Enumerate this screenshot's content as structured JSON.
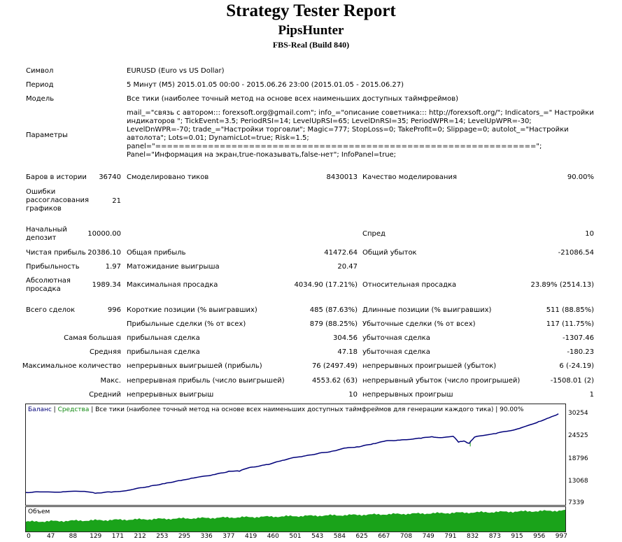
{
  "header": {
    "title": "Strategy Tester Report",
    "expert": "PipsHunter",
    "server": "FBS-Real (Build 840)"
  },
  "settings": {
    "symbol_label": "Символ",
    "symbol_value": "EURUSD (Euro vs US Dollar)",
    "period_label": "Период",
    "period_value": "5 Минут (M5) 2015.01.05 00:00 - 2015.06.26 23:00 (2015.01.05 - 2015.06.27)",
    "model_label": "Модель",
    "model_value": "Все тики (наиболее точный метод на основе всех наименьших доступных таймфреймов)",
    "params_label": "Параметры",
    "params_value": "mail_=\"связь с автором::: forexsoft.org@gmail.com\"; info_=\"описание советника::: http://forexsoft.org/\"; Indicators_=\" Настройки индикаторов \"; TickEvent=3.5; PeriodRSI=14; LevelUpRSI=65; LevelDnRSI=35; PeriodWPR=14; LevelUpWPR=-30; LevelDnWPR=-70; trade_=\"Настройки торговли\"; Magic=777; StopLoss=0; TakeProfit=0; Slippage=0; autolot_=\"Настройки автолота\"; Lots=0.01; DynamicLot=true; Risk=1.5;\npanel=\"=================================================================\"; Panel=\"Информация на экран,true-показывать,false-нет\"; InfoPanel=true;"
  },
  "stats": {
    "bars_label": "Баров в истории",
    "bars_value": "36740",
    "ticks_label": "Смоделировано тиков",
    "ticks_value": "8430013",
    "quality_label": "Качество моделирования",
    "quality_value": "90.00%",
    "mismatch_label": "Ошибки рассогласования графиков",
    "mismatch_value": "21",
    "deposit_label": "Начальный депозит",
    "deposit_value": "10000.00",
    "spread_label": "Спред",
    "spread_value": "10",
    "net_profit_label": "Чистая прибыль",
    "net_profit_value": "20386.10",
    "gross_profit_label": "Общая прибыль",
    "gross_profit_value": "41472.64",
    "gross_loss_label": "Общий убыток",
    "gross_loss_value": "-21086.54",
    "profit_factor_label": "Прибыльность",
    "profit_factor_value": "1.97",
    "expected_payoff_label": "Матожидание выигрыша",
    "expected_payoff_value": "20.47",
    "abs_dd_label": "Абсолютная просадка",
    "abs_dd_value": "1989.34",
    "max_dd_label": "Максимальная просадка",
    "max_dd_value": "4034.90 (17.21%)",
    "rel_dd_label": "Относительная просадка",
    "rel_dd_value": "23.89% (2514.13)",
    "total_trades_label": "Всего сделок",
    "total_trades_value": "996",
    "short_label": "Короткие позиции (% выигравших)",
    "short_value": "485 (87.63%)",
    "long_label": "Длинные позиции (% выигравших)",
    "long_value": "511 (88.85%)",
    "profit_trades_label": "Прибыльные сделки (% от всех)",
    "profit_trades_value": "879 (88.25%)",
    "loss_trades_label": "Убыточные сделки (% от всех)",
    "loss_trades_value": "117 (11.75%)",
    "largest_label": "Самая большая",
    "largest_profit_label": "прибыльная сделка",
    "largest_profit_value": "304.56",
    "largest_loss_label": "убыточная сделка",
    "largest_loss_value": "-1307.46",
    "average_label": "Средняя",
    "avg_profit_label": "прибыльная сделка",
    "avg_profit_value": "47.18",
    "avg_loss_label": "убыточная сделка",
    "avg_loss_value": "-180.23",
    "max_count_label": "Максимальное количество",
    "max_cons_wins_label": "непрерывных выигрышей (прибыль)",
    "max_cons_wins_value": "76 (2497.49)",
    "max_cons_losses_label": "непрерывных проигрышей (убыток)",
    "max_cons_losses_value": "6 (-24.19)",
    "max_label": "Макс.",
    "max_cons_profit_label": "непрерывная прибыль (число выигрышей)",
    "max_cons_profit_value": "4553.62 (63)",
    "max_cons_loss_label": "непрерывный убыток (число проигрышей)",
    "max_cons_loss_value": "-1508.01 (2)",
    "avg2_label": "Средний",
    "avg_cons_wins_label": "непрерывных выигрыш",
    "avg_cons_wins_value": "10",
    "avg_cons_losses_label": "непрерывных проигрыш",
    "avg_cons_losses_value": "1"
  },
  "chart_data": {
    "type": "line",
    "legend_balance": "Баланс",
    "legend_sep1": " | ",
    "legend_equity": "Средства",
    "legend_rest": " | Все тики (наиболее точный метод на основе всех наименьших доступных таймфреймов для генерации каждого тика) | 90.00%",
    "y_ticks": [
      "30254",
      "24525",
      "18796",
      "13068",
      "7339"
    ],
    "x_ticks": [
      "0",
      "47",
      "88",
      "129",
      "171",
      "212",
      "253",
      "295",
      "336",
      "377",
      "419",
      "460",
      "501",
      "543",
      "584",
      "625",
      "667",
      "708",
      "749",
      "791",
      "832",
      "873",
      "915",
      "956",
      "997"
    ],
    "xlim": [
      0,
      1010
    ],
    "ylim": [
      7339,
      30254
    ],
    "volume_label": "Объем",
    "colors": {
      "balance": "#00007a",
      "equity": "#1a9a1a",
      "volume": "#1aa31a"
    },
    "series": [
      {
        "x": [
          0,
          30,
          70,
          110,
          130,
          160,
          200,
          230,
          260,
          290,
          310,
          350,
          380,
          400,
          420,
          450,
          480,
          500,
          520,
          550,
          580,
          600,
          620,
          650,
          670,
          700,
          720,
          740,
          760,
          780,
          800,
          810,
          820,
          830,
          840,
          860,
          880,
          900,
          920,
          940,
          960,
          980,
          997
        ],
        "y": [
          10000,
          10150,
          10200,
          10300,
          9800,
          10100,
          10800,
          11500,
          12300,
          13100,
          13700,
          14600,
          15500,
          15500,
          16500,
          17200,
          18300,
          19000,
          19400,
          20200,
          20800,
          21500,
          21800,
          22600,
          23200,
          23500,
          23700,
          24000,
          24400,
          24200,
          24500,
          23000,
          23300,
          22700,
          24300,
          24800,
          25200,
          25800,
          26400,
          27300,
          28300,
          29300,
          30300
        ]
      }
    ]
  }
}
